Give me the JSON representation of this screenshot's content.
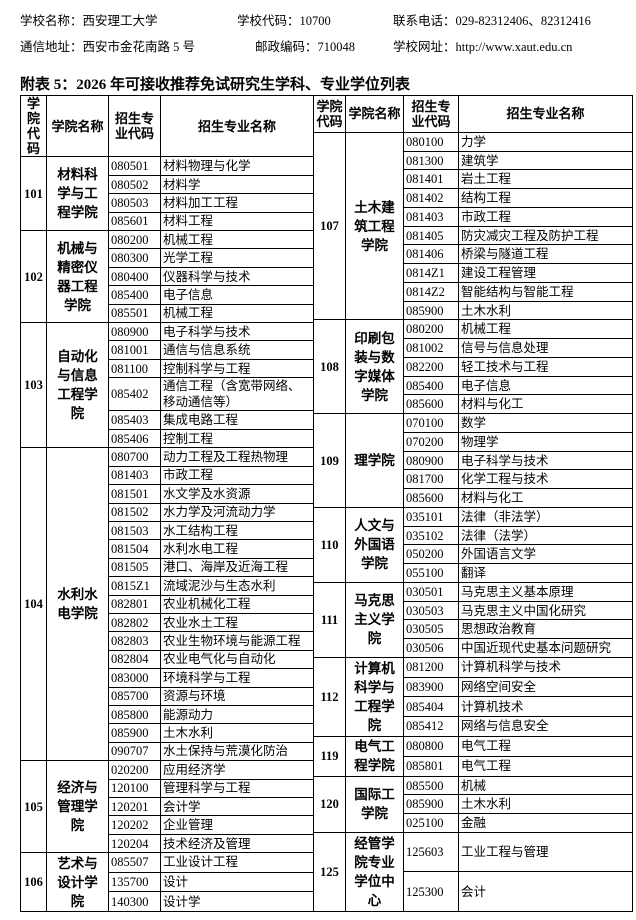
{
  "header": {
    "school_name": "学校名称：西安理工大学",
    "school_code": "学校代码：10700",
    "phone": "联系电话：029-82312406、82312416",
    "address": "通信地址：西安市金花南路 5 号",
    "postcode": "邮政编码：710048",
    "website": "学校网址：http://www.xaut.edu.cn"
  },
  "title": "附表 5：2026 年可接收推荐免试研究生学科、专业学位列表",
  "table": {
    "left": {
      "columns": [
        "学院代码",
        "学院名称",
        "招生专业代码",
        "招生专业名称"
      ],
      "groups": [
        {
          "code": "101",
          "name": "材料科学与工程学院",
          "majors": [
            [
              "080501",
              "材料物理与化学"
            ],
            [
              "080502",
              "材料学"
            ],
            [
              "080503",
              "材料加工工程"
            ],
            [
              "085601",
              "材料工程"
            ]
          ]
        },
        {
          "code": "102",
          "name": "机械与精密仪器工程学院",
          "majors": [
            [
              "080200",
              "机械工程"
            ],
            [
              "080300",
              "光学工程"
            ],
            [
              "080400",
              "仪器科学与技术"
            ],
            [
              "085400",
              "电子信息"
            ],
            [
              "085501",
              "机械工程"
            ]
          ]
        },
        {
          "code": "103",
          "name": "自动化与信息工程学院",
          "majors": [
            [
              "080900",
              "电子科学与技术"
            ],
            [
              "081001",
              "通信与信息系统"
            ],
            [
              "081100",
              "控制科学与工程"
            ],
            [
              "085402",
              "通信工程（含宽带网络、移动通信等）"
            ],
            [
              "085403",
              "集成电路工程"
            ],
            [
              "085406",
              "控制工程"
            ]
          ]
        },
        {
          "code": "104",
          "name": "水利水电学院",
          "majors": [
            [
              "080700",
              "动力工程及工程热物理"
            ],
            [
              "081403",
              "市政工程"
            ],
            [
              "081501",
              "水文学及水资源"
            ],
            [
              "081502",
              "水力学及河流动力学"
            ],
            [
              "081503",
              "水工结构工程"
            ],
            [
              "081504",
              "水利水电工程"
            ],
            [
              "081505",
              "港口、海岸及近海工程"
            ],
            [
              "0815Z1",
              "流域泥沙与生态水利"
            ],
            [
              "082801",
              "农业机械化工程"
            ],
            [
              "082802",
              "农业水土工程"
            ],
            [
              "082803",
              "农业生物环境与能源工程"
            ],
            [
              "082804",
              "农业电气化与自动化"
            ],
            [
              "083000",
              "环境科学与工程"
            ],
            [
              "085700",
              "资源与环境"
            ],
            [
              "085800",
              "能源动力"
            ],
            [
              "085900",
              "土木水利"
            ],
            [
              "090707",
              "水土保持与荒漠化防治"
            ]
          ]
        },
        {
          "code": "105",
          "name": "经济与管理学院",
          "majors": [
            [
              "020200",
              "应用经济学"
            ],
            [
              "120100",
              "管理科学与工程"
            ],
            [
              "120201",
              "会计学"
            ],
            [
              "120202",
              "企业管理"
            ],
            [
              "120204",
              "技术经济及管理"
            ]
          ]
        },
        {
          "code": "106",
          "name": "艺术与设计学院",
          "majors": [
            [
              "085507",
              "工业设计工程"
            ],
            [
              "135700",
              "设计"
            ],
            [
              "140300",
              "设计学"
            ]
          ]
        }
      ]
    },
    "right": {
      "columns": [
        "学院代码",
        "学院名称",
        "招生专业代码",
        "招生专业名称"
      ],
      "groups": [
        {
          "code": "107",
          "name": "土木建筑工程学院",
          "majors": [
            [
              "080100",
              "力学"
            ],
            [
              "081300",
              "建筑学"
            ],
            [
              "081401",
              "岩土工程"
            ],
            [
              "081402",
              "结构工程"
            ],
            [
              "081403",
              "市政工程"
            ],
            [
              "081405",
              "防灾减灾工程及防护工程"
            ],
            [
              "081406",
              "桥梁与隧道工程"
            ],
            [
              "0814Z1",
              "建设工程管理"
            ],
            [
              "0814Z2",
              "智能结构与智能工程"
            ],
            [
              "085900",
              "土木水利"
            ]
          ]
        },
        {
          "code": "108",
          "name": "印刷包装与数字媒体学院",
          "majors": [
            [
              "080200",
              "机械工程"
            ],
            [
              "081002",
              "信号与信息处理"
            ],
            [
              "082200",
              "轻工技术与工程"
            ],
            [
              "085400",
              "电子信息"
            ],
            [
              "085600",
              "材料与化工"
            ]
          ]
        },
        {
          "code": "109",
          "name": "理学院",
          "majors": [
            [
              "070100",
              "数学"
            ],
            [
              "070200",
              "物理学"
            ],
            [
              "080900",
              "电子科学与技术"
            ],
            [
              "081700",
              "化学工程与技术"
            ],
            [
              "085600",
              "材料与化工"
            ]
          ]
        },
        {
          "code": "110",
          "name": "人文与外国语学院",
          "majors": [
            [
              "035101",
              "法律（非法学）"
            ],
            [
              "035102",
              "法律（法学）"
            ],
            [
              "050200",
              "外国语言文学"
            ],
            [
              "055100",
              "翻译"
            ]
          ]
        },
        {
          "code": "111",
          "name": "马克思主义学院",
          "majors": [
            [
              "030501",
              "马克思主义基本原理"
            ],
            [
              "030503",
              "马克思主义中国化研究"
            ],
            [
              "030505",
              "思想政治教育"
            ],
            [
              "030506",
              "中国近现代史基本问题研究"
            ]
          ]
        },
        {
          "code": "112",
          "name": "计算机科学与工程学院",
          "majors": [
            [
              "081200",
              "计算机科学与技术"
            ],
            [
              "083900",
              "网络空间安全"
            ],
            [
              "085404",
              "计算机技术"
            ],
            [
              "085412",
              "网络与信息安全"
            ]
          ]
        },
        {
          "code": "119",
          "name": "电气工程学院",
          "majors": [
            [
              "080800",
              "电气工程"
            ],
            [
              "085801",
              "电气工程"
            ]
          ]
        },
        {
          "code": "120",
          "name": "国际工学院",
          "majors": [
            [
              "085500",
              "机械"
            ],
            [
              "085900",
              "土木水利"
            ],
            [
              "025100",
              "金融"
            ]
          ]
        },
        {
          "code": "125",
          "name": "经管学院专业学位中心",
          "majors": [
            [
              "125603",
              "工业工程与管理"
            ],
            [
              "125300",
              "会计"
            ]
          ]
        }
      ]
    }
  }
}
